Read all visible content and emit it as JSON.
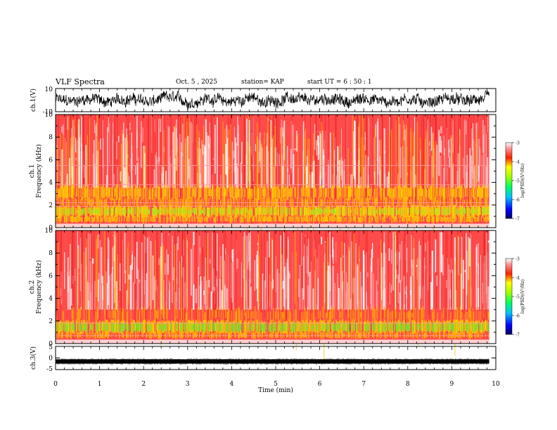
{
  "header": {
    "title": "VLF Spectra",
    "date": "Oct. 5 , 2025",
    "station": "station= KAP",
    "start": "start UT =  6 : 50 : 1"
  },
  "chart_data": [
    {
      "type": "line",
      "name": "ch1-waveform",
      "ylabel": "ch.1(V)",
      "yticks": [
        "10",
        "-10"
      ],
      "ylim": [
        -10,
        10
      ],
      "xlim": [
        0,
        10
      ],
      "data_end_min": 9.85,
      "description_style": "noisy black waveform"
    },
    {
      "type": "heatmap",
      "name": "ch1-spectrogram",
      "ylabel_line1": "ch.1",
      "ylabel_line2": "Frequency (kHz)",
      "yticks": [
        "0",
        "2",
        "4",
        "6",
        "8",
        "10"
      ],
      "ylim": [
        0,
        10
      ],
      "xlim": [
        0,
        10
      ],
      "data_end_min": 9.85,
      "colorbar": {
        "ticks": [
          "-3",
          "-4",
          "-5",
          "-6",
          "-7"
        ],
        "label": "log(PSD)(V²/Hz)",
        "range": [
          -7,
          -3
        ]
      }
    },
    {
      "type": "heatmap",
      "name": "ch2-spectrogram",
      "ylabel_line1": "ch.2",
      "ylabel_line2": "Frequency (kHz)",
      "yticks": [
        "0",
        "2",
        "4",
        "6",
        "8",
        "10"
      ],
      "ylim": [
        0,
        10
      ],
      "xlim": [
        0,
        10
      ],
      "data_end_min": 9.85,
      "colorbar": {
        "ticks": [
          "-3",
          "-4",
          "-5",
          "-6",
          "-7"
        ],
        "label": "log(PSD)(V²/Hz)",
        "range": [
          -7,
          -3
        ]
      }
    },
    {
      "type": "line",
      "name": "ch3-waveform",
      "ylabel": "ch.3(V)",
      "yticks": [
        "5",
        "0",
        "-5"
      ],
      "ylim": [
        -5,
        5
      ],
      "xlim": [
        0,
        10
      ],
      "data_end_min": 9.85,
      "center_value": -1.5
    }
  ],
  "xaxis": {
    "label": "Time (min)",
    "ticks": [
      "0",
      "1",
      "2",
      "3",
      "4",
      "5",
      "6",
      "7",
      "8",
      "9",
      "10"
    ]
  },
  "colors": {
    "spectro_background": "#ffffff",
    "spectro_high": "#ff2020",
    "spectro_mid": "#ffd000",
    "spectro_low": "#40e040"
  }
}
